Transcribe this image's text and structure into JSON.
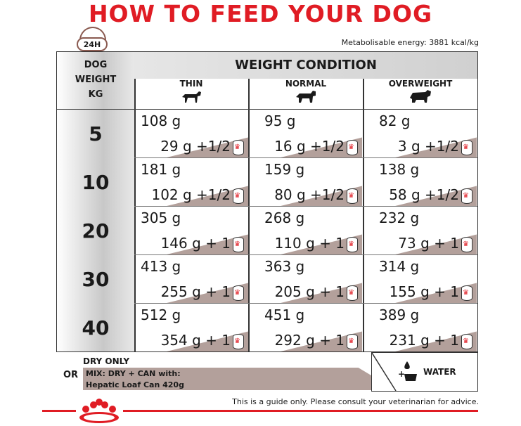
{
  "title": "HOW TO FEED YOUR DOG",
  "badge": "24H",
  "energy": "Metabolisable energy: 3881 kcal/kg",
  "table": {
    "weight_header": [
      "DOG",
      "WEIGHT",
      "KG"
    ],
    "condition_title": "WEIGHT CONDITION",
    "columns": [
      "THIN",
      "NORMAL",
      "OVERWEIGHT"
    ],
    "rows": [
      {
        "weight": "5",
        "thin": {
          "dry": "108 g",
          "mix": "29 g +1/2"
        },
        "normal": {
          "dry": "95 g",
          "mix": "16 g +1/2"
        },
        "over": {
          "dry": "82 g",
          "mix": "3 g +1/2"
        }
      },
      {
        "weight": "10",
        "thin": {
          "dry": "181 g",
          "mix": "102 g +1/2"
        },
        "normal": {
          "dry": "159 g",
          "mix": "80 g +1/2"
        },
        "over": {
          "dry": "138 g",
          "mix": "58 g +1/2"
        }
      },
      {
        "weight": "20",
        "thin": {
          "dry": "305 g",
          "mix": "146 g + 1"
        },
        "normal": {
          "dry": "268 g",
          "mix": "110 g + 1"
        },
        "over": {
          "dry": "232 g",
          "mix": "73 g + 1"
        }
      },
      {
        "weight": "30",
        "thin": {
          "dry": "413 g",
          "mix": "255 g + 1"
        },
        "normal": {
          "dry": "363 g",
          "mix": "205 g + 1"
        },
        "over": {
          "dry": "314 g",
          "mix": "155 g + 1"
        }
      },
      {
        "weight": "40",
        "thin": {
          "dry": "512 g",
          "mix": "354 g + 1"
        },
        "normal": {
          "dry": "451 g",
          "mix": "292 g + 1"
        },
        "over": {
          "dry": "389 g",
          "mix": "231 g + 1"
        }
      }
    ]
  },
  "legend": {
    "or": "OR",
    "dry_only": "DRY ONLY",
    "mix_line1": "MIX: DRY + CAN with:",
    "mix_line2": "Hepatic Loaf Can 420g",
    "water": "WATER"
  },
  "footer": "This is a guide only. Please consult your veterinarian for advice.",
  "colors": {
    "brand_red": "#e01c24",
    "mix_band": "#b3a09b",
    "line": "#333333"
  },
  "icons": [
    "clock-icon",
    "dog-thin-icon",
    "dog-normal-icon",
    "dog-overweight-icon",
    "can-icon",
    "water-bowl-icon",
    "royal-canin-crown-logo"
  ]
}
